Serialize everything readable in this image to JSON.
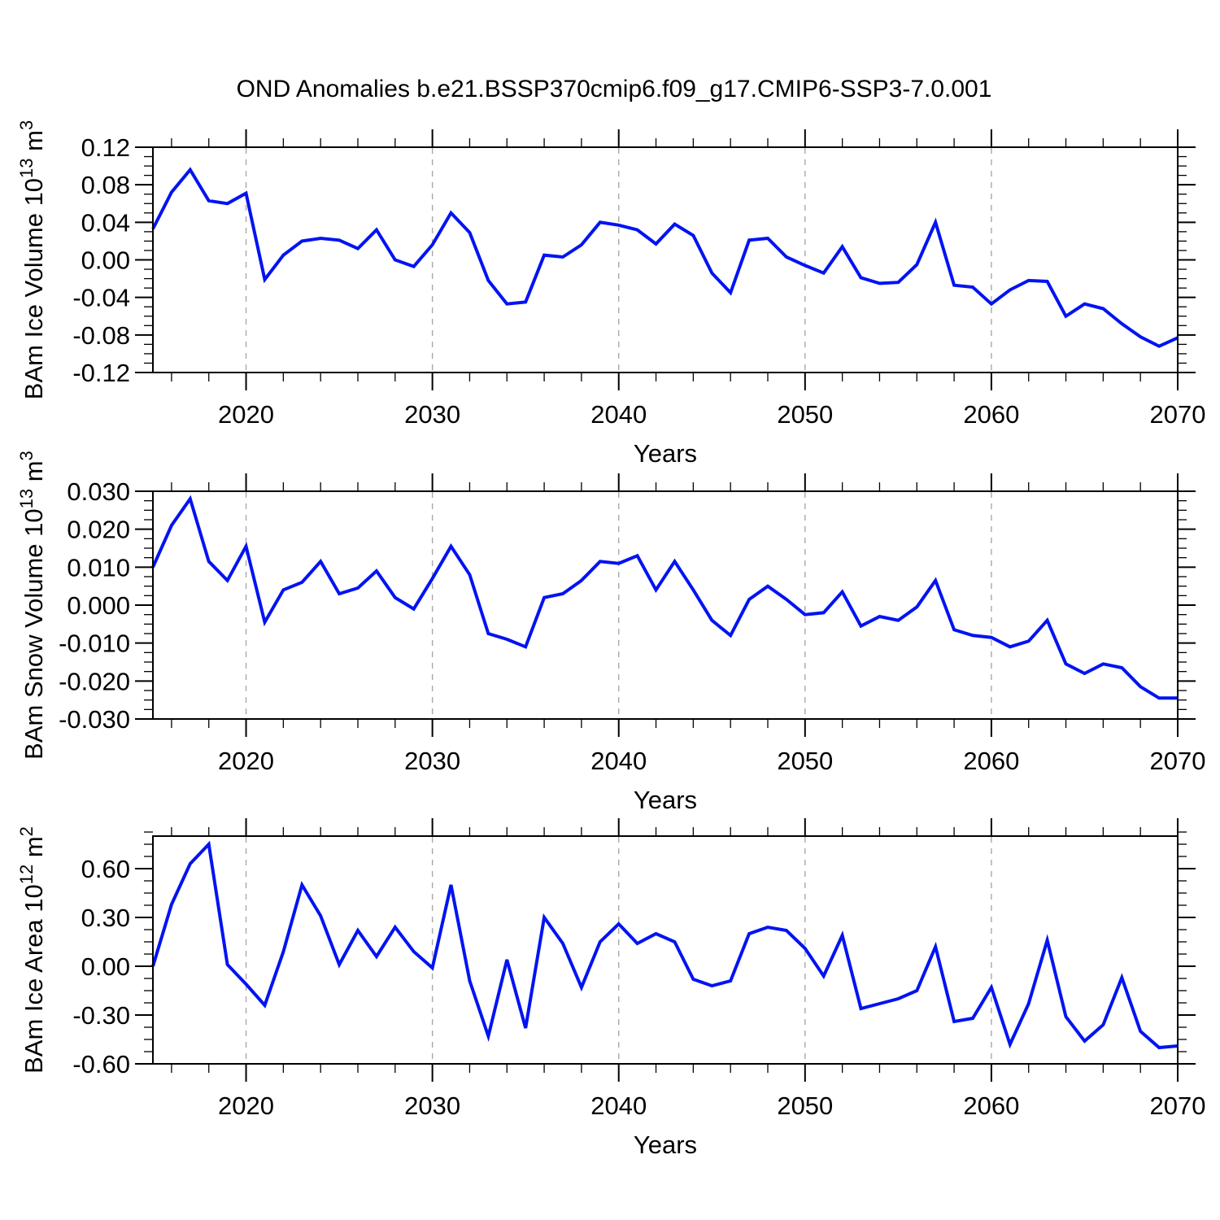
{
  "title": "OND Anomalies b.e21.BSSP370cmip6.f09_g17.CMIP6-SSP3-7.0.001",
  "colors": {
    "line": "#0013f2",
    "grid": "#a8a8a8",
    "frame": "#000000",
    "text": "#000000"
  },
  "x_axis": {
    "label": "Years",
    "start": 2015,
    "end": 2070,
    "major_ticks": [
      2020,
      2030,
      2040,
      2050,
      2060,
      2070
    ],
    "major_tick_labels": [
      "2020",
      "2030",
      "2040",
      "2050",
      "2060",
      "2070"
    ],
    "minor_step": 2,
    "gridlines": [
      2020,
      2030,
      2040,
      2050,
      2060
    ]
  },
  "chart_data": [
    {
      "type": "line",
      "name": "ice-volume",
      "ylabel_text": "BAm Ice Volume 10^13 m^3",
      "ylabel": {
        "prefix": "BAm Ice Volume 10",
        "exponent": "13",
        "unit": " m",
        "unit_exponent": "3"
      },
      "ylim": [
        -0.12,
        0.12
      ],
      "y_major_step": 0.04,
      "y_minor_step": 0.01,
      "grid": "vertical-dashed",
      "legend": "none",
      "y_ticks": [
        {
          "v": 0.12,
          "label": "0.12"
        },
        {
          "v": 0.08,
          "label": "0.08"
        },
        {
          "v": 0.04,
          "label": "0.04"
        },
        {
          "v": 0.0,
          "label": "0.00"
        },
        {
          "v": -0.04,
          "label": "-0.04"
        },
        {
          "v": -0.08,
          "label": "-0.08"
        },
        {
          "v": -0.12,
          "label": "-0.12"
        }
      ],
      "values": [
        0.033,
        0.072,
        0.096,
        0.063,
        0.06,
        0.071,
        -0.021,
        0.005,
        0.02,
        0.023,
        0.021,
        0.012,
        0.032,
        0.0,
        -0.007,
        0.016,
        0.05,
        0.029,
        -0.022,
        -0.047,
        -0.045,
        0.005,
        0.003,
        0.016,
        0.04,
        0.037,
        0.032,
        0.017,
        0.038,
        0.026,
        -0.014,
        -0.035,
        0.021,
        0.023,
        0.003,
        -0.006,
        -0.014,
        0.014,
        -0.019,
        -0.025,
        -0.024,
        -0.005,
        0.04,
        -0.027,
        -0.029,
        -0.047,
        -0.032,
        -0.022,
        -0.023,
        -0.06,
        -0.047,
        -0.052,
        -0.068,
        -0.082,
        -0.092,
        -0.083
      ]
    },
    {
      "type": "line",
      "name": "snow-volume",
      "ylabel_text": "BAm Snow Volume 10^13 m^3",
      "ylabel": {
        "prefix": "BAm Snow Volume 10",
        "exponent": "13",
        "unit": " m",
        "unit_exponent": "3"
      },
      "ylim": [
        -0.03,
        0.03
      ],
      "y_major_step": 0.01,
      "y_minor_step": 0.0025,
      "grid": "vertical-dashed",
      "legend": "none",
      "y_ticks": [
        {
          "v": 0.03,
          "label": "0.030"
        },
        {
          "v": 0.02,
          "label": "0.020"
        },
        {
          "v": 0.01,
          "label": "0.010"
        },
        {
          "v": 0.0,
          "label": "0.000"
        },
        {
          "v": -0.01,
          "label": "-0.010"
        },
        {
          "v": -0.02,
          "label": "-0.020"
        },
        {
          "v": -0.03,
          "label": "-0.030"
        }
      ],
      "values": [
        0.01,
        0.021,
        0.028,
        0.0115,
        0.0065,
        0.0155,
        -0.0045,
        0.004,
        0.006,
        0.0115,
        0.003,
        0.0045,
        0.009,
        0.002,
        -0.001,
        0.007,
        0.0155,
        0.008,
        -0.0075,
        -0.009,
        -0.011,
        0.002,
        0.003,
        0.0065,
        0.0115,
        0.011,
        0.013,
        0.004,
        0.0115,
        0.004,
        -0.004,
        -0.008,
        0.0015,
        0.005,
        0.0015,
        -0.0025,
        -0.002,
        0.0035,
        -0.0055,
        -0.003,
        -0.004,
        -0.0005,
        0.0065,
        -0.0065,
        -0.008,
        -0.0085,
        -0.011,
        -0.0095,
        -0.004,
        -0.0155,
        -0.018,
        -0.0155,
        -0.0165,
        -0.0215,
        -0.0245,
        -0.0245
      ]
    },
    {
      "type": "line",
      "name": "ice-area",
      "ylabel_text": "BAm Ice Area 10^12 m^2",
      "ylabel": {
        "prefix": "BAm Ice Area 10",
        "exponent": "12",
        "unit": " m",
        "unit_exponent": "2"
      },
      "ylim": [
        -0.6,
        0.8
      ],
      "y_major_step": 0.3,
      "y_minor_step": 0.075,
      "grid": "vertical-dashed",
      "legend": "none",
      "y_ticks": [
        {
          "v": 0.6,
          "label": "0.60"
        },
        {
          "v": 0.3,
          "label": "0.30"
        },
        {
          "v": 0.0,
          "label": "0.00"
        },
        {
          "v": -0.3,
          "label": "-0.30"
        },
        {
          "v": -0.6,
          "label": "-0.60"
        }
      ],
      "values": [
        0.0,
        0.38,
        0.63,
        0.75,
        0.01,
        -0.11,
        -0.24,
        0.09,
        0.5,
        0.31,
        0.01,
        0.22,
        0.06,
        0.24,
        0.09,
        -0.01,
        0.5,
        -0.09,
        -0.43,
        0.04,
        -0.38,
        0.3,
        0.14,
        -0.13,
        0.15,
        0.26,
        0.14,
        0.2,
        0.15,
        -0.08,
        -0.12,
        -0.09,
        0.2,
        0.24,
        0.22,
        0.11,
        -0.06,
        0.19,
        -0.26,
        -0.23,
        -0.2,
        -0.15,
        0.12,
        -0.34,
        -0.32,
        -0.13,
        -0.48,
        -0.23,
        0.16,
        -0.31,
        -0.46,
        -0.36,
        -0.07,
        -0.4,
        -0.5,
        -0.49
      ]
    }
  ]
}
